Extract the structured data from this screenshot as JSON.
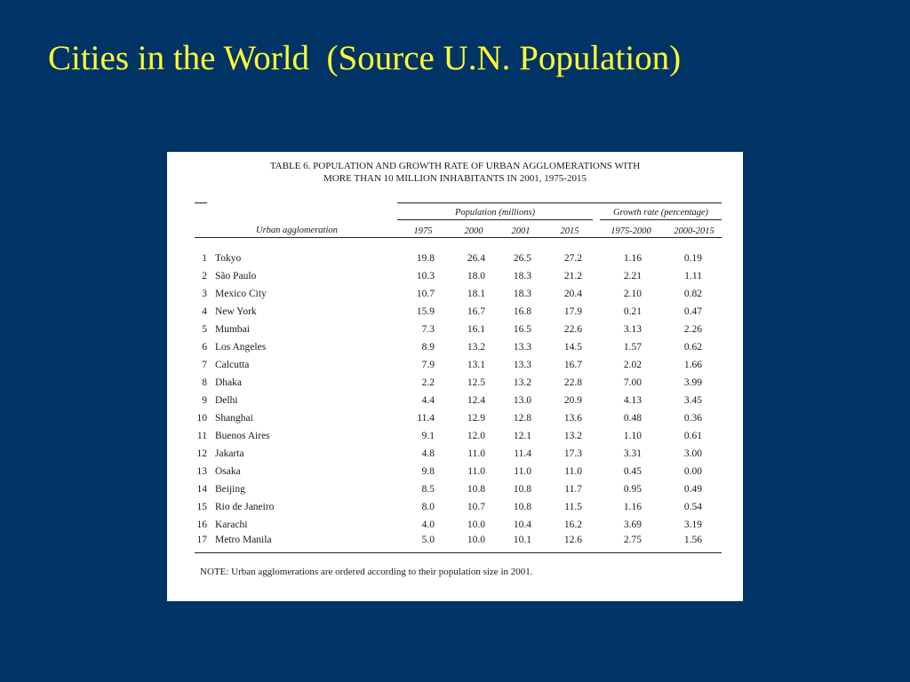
{
  "slide": {
    "title": "Cities in the World  (Source U.N. Population)"
  },
  "table": {
    "caption_line1": "TABLE 6.  POPULATION AND GROWTH RATE OF URBAN AGGLOMERATIONS WITH",
    "caption_line2": "MORE THAN 10 MILLION INHABITANTS IN 2001, 1975-2015",
    "group_population": "Population (millions)",
    "group_growth": "Growth rate (percentage)",
    "col_agglomeration": "Urban agglomeration",
    "col_1975": "1975",
    "col_2000": "2000",
    "col_2001": "2001",
    "col_2015": "2015",
    "col_gr1": "1975-2000",
    "col_gr2": "2000-2015",
    "rows": [
      {
        "rank": "1",
        "city": "Tokyo",
        "p1975": "19.8",
        "p2000": "26.4",
        "p2001": "26.5",
        "p2015": "27.2",
        "g1": "1.16",
        "g2": "0.19"
      },
      {
        "rank": "2",
        "city": "São Paulo",
        "p1975": "10.3",
        "p2000": "18.0",
        "p2001": "18.3",
        "p2015": "21.2",
        "g1": "2.21",
        "g2": "1.11"
      },
      {
        "rank": "3",
        "city": "Mexico City",
        "p1975": "10.7",
        "p2000": "18.1",
        "p2001": "18.3",
        "p2015": "20.4",
        "g1": "2.10",
        "g2": "0.82"
      },
      {
        "rank": "4",
        "city": "New York",
        "p1975": "15.9",
        "p2000": "16.7",
        "p2001": "16.8",
        "p2015": "17.9",
        "g1": "0.21",
        "g2": "0.47"
      },
      {
        "rank": "5",
        "city": "Mumbai",
        "p1975": "7.3",
        "p2000": "16.1",
        "p2001": "16.5",
        "p2015": "22.6",
        "g1": "3.13",
        "g2": "2.26"
      },
      {
        "rank": "6",
        "city": "Los Angeles",
        "p1975": "8.9",
        "p2000": "13.2",
        "p2001": "13.3",
        "p2015": "14.5",
        "g1": "1.57",
        "g2": "0.62"
      },
      {
        "rank": "7",
        "city": "Calcutta",
        "p1975": "7.9",
        "p2000": "13.1",
        "p2001": "13.3",
        "p2015": "16.7",
        "g1": "2.02",
        "g2": "1.66"
      },
      {
        "rank": "8",
        "city": "Dhaka",
        "p1975": "2.2",
        "p2000": "12.5",
        "p2001": "13.2",
        "p2015": "22.8",
        "g1": "7.00",
        "g2": "3.99"
      },
      {
        "rank": "9",
        "city": "Delhi",
        "p1975": "4.4",
        "p2000": "12.4",
        "p2001": "13.0",
        "p2015": "20.9",
        "g1": "4.13",
        "g2": "3.45"
      },
      {
        "rank": "10",
        "city": "Shanghai",
        "p1975": "11.4",
        "p2000": "12.9",
        "p2001": "12.8",
        "p2015": "13.6",
        "g1": "0.48",
        "g2": "0.36"
      },
      {
        "rank": "11",
        "city": "Buenos Aires",
        "p1975": "9.1",
        "p2000": "12.0",
        "p2001": "12.1",
        "p2015": "13.2",
        "g1": "1.10",
        "g2": "0.61"
      },
      {
        "rank": "12",
        "city": "Jakarta",
        "p1975": "4.8",
        "p2000": "11.0",
        "p2001": "11.4",
        "p2015": "17.3",
        "g1": "3.31",
        "g2": "3.00"
      },
      {
        "rank": "13",
        "city": "Osaka",
        "p1975": "9.8",
        "p2000": "11.0",
        "p2001": "11.0",
        "p2015": "11.0",
        "g1": "0.45",
        "g2": "0.00"
      },
      {
        "rank": "14",
        "city": "Beijing",
        "p1975": "8.5",
        "p2000": "10.8",
        "p2001": "10.8",
        "p2015": "11.7",
        "g1": "0.95",
        "g2": "0.49"
      },
      {
        "rank": "15",
        "city": "Rio de Janeiro",
        "p1975": "8.0",
        "p2000": "10.7",
        "p2001": "10.8",
        "p2015": "11.5",
        "g1": "1.16",
        "g2": "0.54"
      },
      {
        "rank": "16",
        "city": "Karachi",
        "p1975": "4.0",
        "p2000": "10.0",
        "p2001": "10.4",
        "p2015": "16.2",
        "g1": "3.69",
        "g2": "3.19"
      },
      {
        "rank": "17",
        "city": "Metro Manila",
        "p1975": "5.0",
        "p2000": "10.0",
        "p2001": "10.1",
        "p2015": "12.6",
        "g1": "2.75",
        "g2": "1.56"
      }
    ],
    "note": "NOTE:  Urban agglomerations are ordered according to their population size in 2001."
  }
}
